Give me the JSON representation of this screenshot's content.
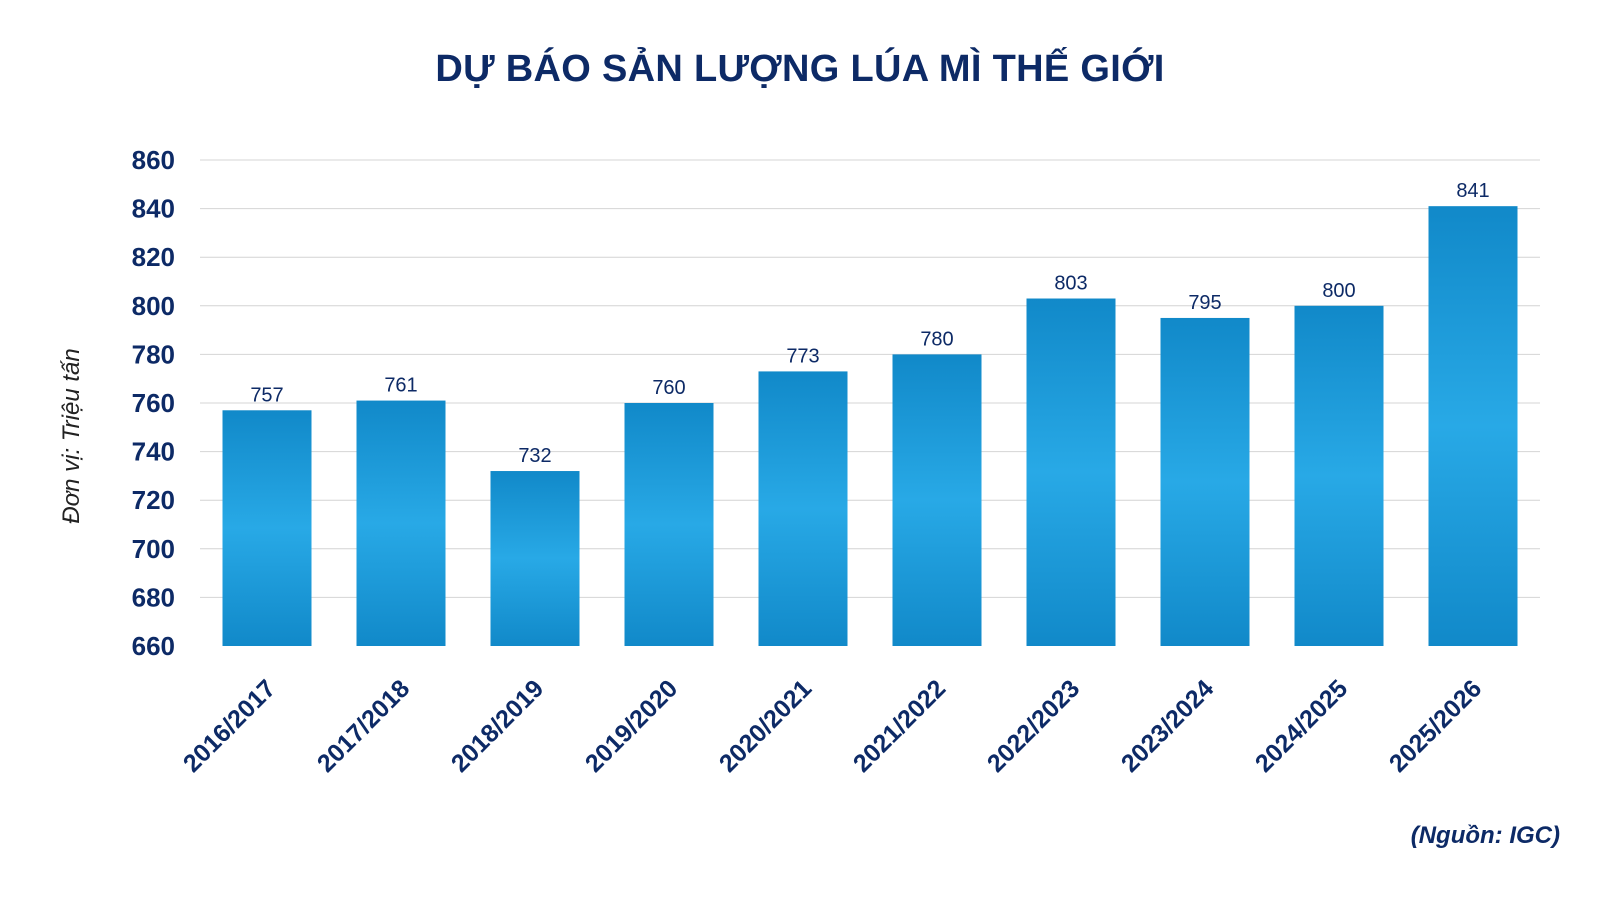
{
  "chart_data": {
    "type": "bar",
    "title": "DỰ BÁO SẢN LƯỢNG LÚA MÌ THẾ GIỚI",
    "xlabel": "",
    "ylabel": "Đơn vị: Triệu tấn",
    "source": "(Nguồn: IGC)",
    "categories": [
      "2016/2017",
      "2017/2018",
      "2018/2019",
      "2019/2020",
      "2020/2021",
      "2021/2022",
      "2022/2023",
      "2023/2024",
      "2024/2025",
      "2025/2026"
    ],
    "values": [
      757,
      761,
      732,
      760,
      773,
      780,
      803,
      795,
      800,
      841
    ],
    "data_labels": [
      "757",
      "761",
      "732",
      "760",
      "773",
      "780",
      "803",
      "795",
      "800",
      "841"
    ],
    "ylim": [
      660,
      860
    ],
    "yticks": [
      "660",
      "680",
      "700",
      "720",
      "740",
      "760",
      "780",
      "800",
      "820",
      "840",
      "860"
    ],
    "grid": true,
    "legend": "none",
    "colors": {
      "bar_edge": "#1189c9",
      "bar_center": "#28a9e6",
      "text": "#0d2a66",
      "grid": "#d4d4d4"
    }
  }
}
